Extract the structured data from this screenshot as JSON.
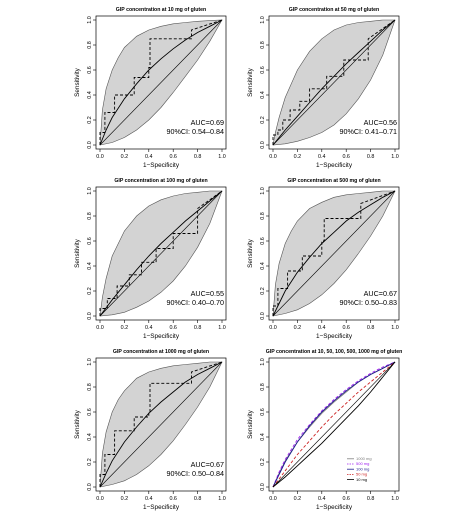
{
  "chart_data": [
    {
      "type": "line",
      "title": "GIP concentration at 10 mg of gluten",
      "xlabel": "1−Specificity",
      "ylabel": "Sensitivity",
      "xlim": [
        0,
        1
      ],
      "ylim": [
        0,
        1
      ],
      "xticks": [
        "0.0",
        "0.2",
        "0.4",
        "0.6",
        "0.8",
        "1.0"
      ],
      "yticks": [
        "0.0",
        "0.2",
        "0.4",
        "0.6",
        "0.8",
        "1.0"
      ],
      "auc_text": "AUC=0.69",
      "ci_text": "90%CI: 0.54–0.84",
      "series": [
        {
          "style": "dashed",
          "x": [
            0,
            0,
            0.04,
            0.04,
            0.12,
            0.12,
            0.28,
            0.28,
            0.4,
            0.4,
            0.41,
            0.41,
            0.75,
            0.75,
            1
          ],
          "y": [
            0,
            0.1,
            0.1,
            0.26,
            0.26,
            0.4,
            0.4,
            0.54,
            0.54,
            0.62,
            0.62,
            0.85,
            0.85,
            0.92,
            1
          ]
        },
        {
          "style": "solid",
          "x": [
            0,
            0.05,
            0.1,
            0.2,
            0.3,
            0.4,
            0.5,
            0.6,
            0.7,
            0.8,
            0.9,
            1
          ],
          "y": [
            0,
            0.12,
            0.22,
            0.37,
            0.49,
            0.6,
            0.69,
            0.77,
            0.84,
            0.9,
            0.95,
            1
          ]
        },
        {
          "style": "diagonal",
          "x": [
            0,
            1
          ],
          "y": [
            0,
            1
          ]
        }
      ],
      "band": {
        "upper": {
          "x": [
            0,
            0.02,
            0.05,
            0.1,
            0.15,
            0.2,
            0.3,
            0.4,
            0.5,
            0.6,
            0.7,
            0.8,
            0.9,
            1
          ],
          "y": [
            0,
            0.28,
            0.45,
            0.6,
            0.7,
            0.78,
            0.87,
            0.92,
            0.95,
            0.97,
            0.98,
            0.99,
            0.995,
            1
          ]
        },
        "lower": {
          "x": [
            0,
            0.1,
            0.2,
            0.3,
            0.4,
            0.5,
            0.6,
            0.7,
            0.8,
            0.9,
            1
          ],
          "y": [
            0,
            0.02,
            0.06,
            0.12,
            0.2,
            0.3,
            0.42,
            0.55,
            0.68,
            0.83,
            1
          ]
        }
      }
    },
    {
      "type": "line",
      "title": "GIP concentration at 50 mg of gluten",
      "xlabel": "1−Specificity",
      "ylabel": "Sensitivity",
      "xlim": [
        0,
        1
      ],
      "ylim": [
        0,
        1
      ],
      "xticks": [
        "0.0",
        "0.2",
        "0.4",
        "0.6",
        "0.8",
        "1.0"
      ],
      "yticks": [
        "0.0",
        "0.2",
        "0.4",
        "0.6",
        "0.8",
        "1.0"
      ],
      "auc_text": "AUC=0.56",
      "ci_text": "90%CI: 0.41–0.71",
      "series": [
        {
          "style": "dashed",
          "x": [
            0,
            0,
            0.04,
            0.04,
            0.08,
            0.08,
            0.14,
            0.14,
            0.22,
            0.22,
            0.3,
            0.3,
            0.44,
            0.44,
            0.58,
            0.58,
            0.78,
            0.78,
            1
          ],
          "y": [
            0,
            0.08,
            0.08,
            0.12,
            0.12,
            0.2,
            0.2,
            0.28,
            0.28,
            0.35,
            0.35,
            0.45,
            0.45,
            0.55,
            0.55,
            0.68,
            0.68,
            0.85,
            1
          ]
        },
        {
          "style": "solid",
          "x": [
            0,
            0.1,
            0.2,
            0.3,
            0.4,
            0.5,
            0.6,
            0.7,
            0.8,
            0.9,
            1
          ],
          "y": [
            0,
            0.12,
            0.23,
            0.34,
            0.45,
            0.55,
            0.65,
            0.74,
            0.83,
            0.92,
            1
          ]
        },
        {
          "style": "diagonal",
          "x": [
            0,
            1
          ],
          "y": [
            0,
            1
          ]
        }
      ],
      "band": {
        "upper": {
          "x": [
            0,
            0.02,
            0.05,
            0.1,
            0.2,
            0.3,
            0.4,
            0.5,
            0.6,
            0.7,
            0.8,
            0.9,
            1
          ],
          "y": [
            0,
            0.1,
            0.22,
            0.38,
            0.6,
            0.75,
            0.85,
            0.92,
            0.96,
            0.98,
            0.99,
            1,
            1
          ]
        },
        "lower": {
          "x": [
            0,
            0.1,
            0.2,
            0.3,
            0.4,
            0.5,
            0.6,
            0.7,
            0.8,
            0.9,
            1
          ],
          "y": [
            0,
            0.01,
            0.03,
            0.06,
            0.1,
            0.16,
            0.25,
            0.37,
            0.52,
            0.72,
            1
          ]
        }
      }
    },
    {
      "type": "line",
      "title": "GIP concentration at 100 mg of gluten",
      "xlabel": "1−Specificity",
      "ylabel": "Sensitivity",
      "xlim": [
        0,
        1
      ],
      "ylim": [
        0,
        1
      ],
      "xticks": [
        "0.0",
        "0.2",
        "0.4",
        "0.6",
        "0.8",
        "1.0"
      ],
      "yticks": [
        "0.0",
        "0.2",
        "0.4",
        "0.6",
        "0.8",
        "1.0"
      ],
      "auc_text": "AUC=0.55",
      "ci_text": "90%CI: 0.40–0.70",
      "series": [
        {
          "style": "dashed",
          "x": [
            0,
            0,
            0.06,
            0.06,
            0.14,
            0.14,
            0.24,
            0.24,
            0.34,
            0.34,
            0.46,
            0.46,
            0.6,
            0.6,
            0.8,
            0.8,
            1
          ],
          "y": [
            0,
            0.06,
            0.06,
            0.14,
            0.14,
            0.24,
            0.24,
            0.33,
            0.33,
            0.43,
            0.43,
            0.54,
            0.54,
            0.66,
            0.66,
            0.86,
            1
          ]
        },
        {
          "style": "solid",
          "x": [
            0,
            0.1,
            0.2,
            0.3,
            0.4,
            0.5,
            0.6,
            0.7,
            0.8,
            0.9,
            1
          ],
          "y": [
            0,
            0.13,
            0.25,
            0.37,
            0.48,
            0.58,
            0.67,
            0.76,
            0.84,
            0.92,
            1
          ]
        },
        {
          "style": "diagonal",
          "x": [
            0,
            1
          ],
          "y": [
            0,
            1
          ]
        }
      ],
      "band": {
        "upper": {
          "x": [
            0,
            0.02,
            0.05,
            0.1,
            0.2,
            0.3,
            0.4,
            0.5,
            0.6,
            0.7,
            0.8,
            0.9,
            1
          ],
          "y": [
            0,
            0.15,
            0.3,
            0.48,
            0.68,
            0.8,
            0.88,
            0.93,
            0.96,
            0.98,
            0.99,
            1,
            1
          ]
        },
        "lower": {
          "x": [
            0,
            0.1,
            0.2,
            0.3,
            0.4,
            0.5,
            0.6,
            0.7,
            0.8,
            0.9,
            1
          ],
          "y": [
            0,
            0.01,
            0.03,
            0.07,
            0.12,
            0.19,
            0.28,
            0.4,
            0.55,
            0.74,
            1
          ]
        }
      }
    },
    {
      "type": "line",
      "title": "GIP concentration at 500 mg of gluten",
      "xlabel": "1−Specificity",
      "ylabel": "Sensitivity",
      "xlim": [
        0,
        1
      ],
      "ylim": [
        0,
        1
      ],
      "xticks": [
        "0.0",
        "0.2",
        "0.4",
        "0.6",
        "0.8",
        "1.0"
      ],
      "yticks": [
        "0.0",
        "0.2",
        "0.4",
        "0.6",
        "0.8",
        "1.0"
      ],
      "auc_text": "AUC=0.67",
      "ci_text": "90%CI: 0.50–0.83",
      "series": [
        {
          "style": "dashed",
          "x": [
            0,
            0,
            0.04,
            0.04,
            0.12,
            0.12,
            0.24,
            0.24,
            0.4,
            0.4,
            0.42,
            0.42,
            0.72,
            0.72,
            1
          ],
          "y": [
            0,
            0.08,
            0.08,
            0.22,
            0.22,
            0.36,
            0.36,
            0.48,
            0.48,
            0.6,
            0.6,
            0.78,
            0.78,
            0.9,
            1
          ]
        },
        {
          "style": "solid",
          "x": [
            0,
            0.05,
            0.1,
            0.2,
            0.3,
            0.4,
            0.5,
            0.6,
            0.7,
            0.8,
            0.9,
            1
          ],
          "y": [
            0,
            0.1,
            0.2,
            0.35,
            0.47,
            0.58,
            0.67,
            0.76,
            0.83,
            0.89,
            0.95,
            1
          ]
        },
        {
          "style": "diagonal",
          "x": [
            0,
            1
          ],
          "y": [
            0,
            1
          ]
        }
      ],
      "band": {
        "upper": {
          "x": [
            0,
            0.02,
            0.05,
            0.1,
            0.15,
            0.2,
            0.3,
            0.4,
            0.5,
            0.6,
            0.7,
            0.8,
            0.9,
            1
          ],
          "y": [
            0,
            0.25,
            0.42,
            0.58,
            0.68,
            0.76,
            0.86,
            0.91,
            0.95,
            0.97,
            0.98,
            0.99,
            1,
            1
          ]
        },
        "lower": {
          "x": [
            0,
            0.1,
            0.2,
            0.3,
            0.4,
            0.5,
            0.6,
            0.7,
            0.8,
            0.9,
            1
          ],
          "y": [
            0,
            0.02,
            0.05,
            0.1,
            0.17,
            0.26,
            0.37,
            0.5,
            0.64,
            0.8,
            1
          ]
        }
      }
    },
    {
      "type": "line",
      "title": "GIP concentration at 1000 mg of gluten",
      "xlabel": "1−Specificity",
      "ylabel": "Sensitivity",
      "xlim": [
        0,
        1
      ],
      "ylim": [
        0,
        1
      ],
      "xticks": [
        "0.0",
        "0.2",
        "0.4",
        "0.6",
        "0.8",
        "1.0"
      ],
      "yticks": [
        "0.0",
        "0.2",
        "0.4",
        "0.6",
        "0.8",
        "1.0"
      ],
      "auc_text": "AUC=0.67",
      "ci_text": "90%CI: 0.50–0.84",
      "series": [
        {
          "style": "dashed",
          "x": [
            0,
            0,
            0.04,
            0.04,
            0.12,
            0.12,
            0.28,
            0.28,
            0.4,
            0.4,
            0.41,
            0.41,
            0.75,
            0.75,
            1
          ],
          "y": [
            0,
            0.1,
            0.1,
            0.26,
            0.26,
            0.45,
            0.45,
            0.56,
            0.56,
            0.6,
            0.6,
            0.83,
            0.83,
            0.92,
            1
          ]
        },
        {
          "style": "solid",
          "x": [
            0,
            0.05,
            0.1,
            0.2,
            0.3,
            0.4,
            0.5,
            0.6,
            0.7,
            0.8,
            0.9,
            1
          ],
          "y": [
            0,
            0.11,
            0.21,
            0.36,
            0.48,
            0.59,
            0.68,
            0.76,
            0.84,
            0.9,
            0.95,
            1
          ]
        },
        {
          "style": "diagonal",
          "x": [
            0,
            1
          ],
          "y": [
            0,
            1
          ]
        }
      ],
      "band": {
        "upper": {
          "x": [
            0,
            0.02,
            0.05,
            0.1,
            0.15,
            0.2,
            0.3,
            0.4,
            0.5,
            0.6,
            0.7,
            0.8,
            0.9,
            1
          ],
          "y": [
            0,
            0.27,
            0.44,
            0.6,
            0.7,
            0.77,
            0.87,
            0.92,
            0.95,
            0.97,
            0.98,
            0.99,
            1,
            1
          ]
        },
        "lower": {
          "x": [
            0,
            0.1,
            0.2,
            0.3,
            0.4,
            0.5,
            0.6,
            0.7,
            0.8,
            0.9,
            1
          ],
          "y": [
            0,
            0.02,
            0.05,
            0.1,
            0.17,
            0.26,
            0.37,
            0.5,
            0.64,
            0.8,
            1
          ]
        }
      }
    },
    {
      "type": "line",
      "title": "GIP concentration at 10, 50, 100, 500, 1000 mg of gluten",
      "xlabel": "1−Specificity",
      "ylabel": "Sensitivity",
      "xlim": [
        0,
        1
      ],
      "ylim": [
        0,
        1
      ],
      "xticks": [
        "0.0",
        "0.2",
        "0.4",
        "0.6",
        "0.8",
        "1.0"
      ],
      "yticks": [
        "0.0",
        "0.2",
        "0.4",
        "0.6",
        "0.8",
        "1.0"
      ],
      "legend_position": "bottom-right",
      "series": [
        {
          "name": "1000 mg",
          "color": "#7f7f7f",
          "style": "solid",
          "x": [
            0,
            0.05,
            0.1,
            0.2,
            0.3,
            0.4,
            0.5,
            0.6,
            0.7,
            0.8,
            0.9,
            1
          ],
          "y": [
            0,
            0.11,
            0.21,
            0.36,
            0.48,
            0.59,
            0.68,
            0.76,
            0.84,
            0.9,
            0.95,
            1
          ]
        },
        {
          "name": "500 mg",
          "color": "#a020f0",
          "style": "dashed",
          "x": [
            0,
            0.05,
            0.1,
            0.2,
            0.3,
            0.4,
            0.5,
            0.6,
            0.7,
            0.8,
            0.9,
            1
          ],
          "y": [
            0,
            0.12,
            0.22,
            0.38,
            0.5,
            0.61,
            0.7,
            0.78,
            0.85,
            0.91,
            0.96,
            1
          ]
        },
        {
          "name": "100 mg",
          "color": "#1c1c8c",
          "style": "solid",
          "x": [
            0,
            0.05,
            0.1,
            0.2,
            0.3,
            0.4,
            0.5,
            0.6,
            0.7,
            0.8,
            0.9,
            1
          ],
          "y": [
            0,
            0.1,
            0.2,
            0.36,
            0.49,
            0.6,
            0.69,
            0.77,
            0.84,
            0.9,
            0.95,
            1
          ]
        },
        {
          "name": "50 mg",
          "color": "#cc2222",
          "style": "dashed",
          "x": [
            0,
            0.1,
            0.2,
            0.3,
            0.4,
            0.5,
            0.6,
            0.7,
            0.8,
            0.9,
            1
          ],
          "y": [
            0,
            0.13,
            0.26,
            0.37,
            0.48,
            0.58,
            0.67,
            0.76,
            0.84,
            0.92,
            1
          ]
        },
        {
          "name": "10 mg",
          "color": "#000000",
          "style": "solid",
          "x": [
            0,
            0.1,
            0.2,
            0.3,
            0.4,
            0.5,
            0.6,
            0.7,
            0.8,
            0.9,
            1
          ],
          "y": [
            0,
            0.08,
            0.17,
            0.26,
            0.35,
            0.45,
            0.55,
            0.65,
            0.76,
            0.88,
            1
          ]
        },
        {
          "style": "diagonal",
          "x": [
            0,
            1
          ],
          "y": [
            0,
            1
          ]
        }
      ]
    }
  ]
}
